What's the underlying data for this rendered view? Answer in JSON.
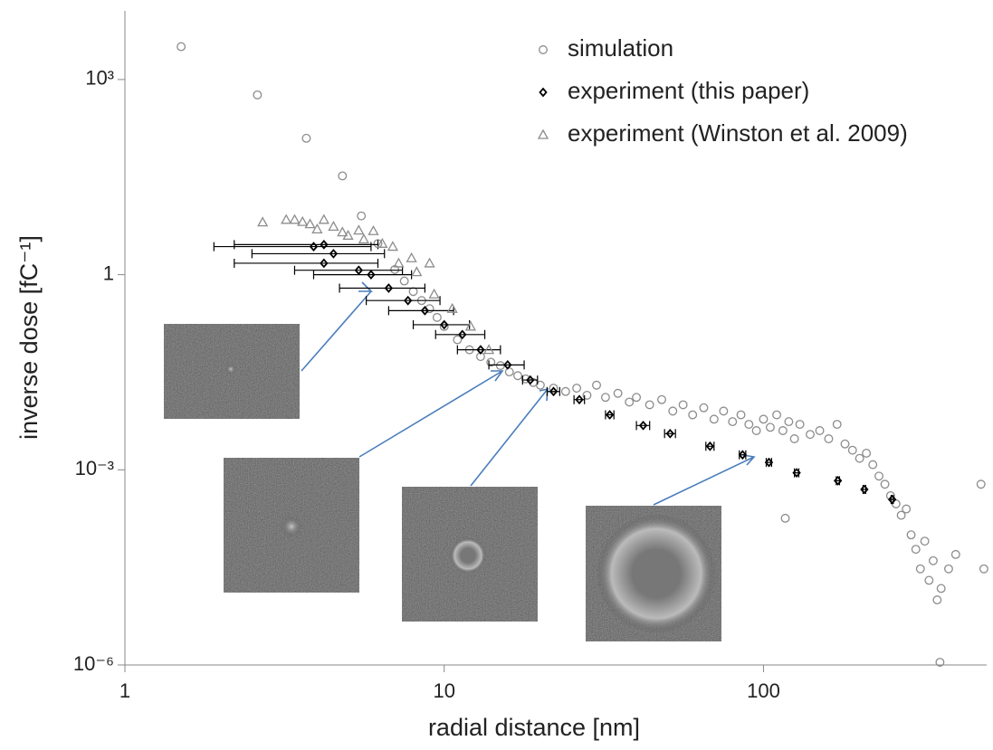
{
  "chart_data": {
    "type": "scatter",
    "xlabel": "radial distance [nm]",
    "ylabel": "inverse dose [fC⁻¹]",
    "xscale": "log",
    "yscale": "log",
    "xlim": [
      1,
      500
    ],
    "ylim": [
      1e-06,
      10000
    ],
    "xticks": [
      1,
      10,
      100
    ],
    "yticks": [
      {
        "value": 1e-06,
        "label": "10⁻⁶"
      },
      {
        "value": 0.001,
        "label": "10⁻³"
      },
      1,
      {
        "value": 1000,
        "label": "10³"
      }
    ],
    "legend": "upper right",
    "series": [
      {
        "name": "simulation",
        "color": "#8c8c8c",
        "marker": "circle",
        "x": [
          1.5,
          2.6,
          3.7,
          4.8,
          5.5,
          6.2,
          7,
          7.5,
          8,
          8.5,
          9,
          9.5,
          10,
          11,
          12,
          13,
          14,
          15,
          16,
          17,
          18,
          19,
          20,
          22,
          24,
          26,
          28,
          30,
          32,
          35,
          38,
          40,
          44,
          48,
          52,
          56,
          60,
          65,
          70,
          75,
          80,
          85,
          90,
          95,
          100,
          105,
          110,
          115,
          117,
          120,
          125,
          130,
          140,
          150,
          160,
          170,
          180,
          190,
          200,
          210,
          220,
          230,
          240,
          250,
          260,
          270,
          280,
          290,
          300,
          310,
          320,
          330,
          340,
          350,
          357,
          360,
          380,
          400,
          480,
          490
        ],
        "values": [
          3200,
          580,
          125,
          33,
          8,
          3,
          1.2,
          0.8,
          0.55,
          0.4,
          0.3,
          0.22,
          0.16,
          0.1,
          0.07,
          0.055,
          0.045,
          0.04,
          0.032,
          0.028,
          0.025,
          0.022,
          0.02,
          0.018,
          0.016,
          0.018,
          0.014,
          0.02,
          0.013,
          0.015,
          0.011,
          0.013,
          0.01,
          0.012,
          0.008,
          0.01,
          0.007,
          0.009,
          0.006,
          0.008,
          0.0055,
          0.007,
          0.005,
          0.004,
          0.006,
          0.0045,
          0.007,
          0.004,
          0.00018,
          0.0055,
          0.003,
          0.005,
          0.0035,
          0.004,
          0.003,
          0.005,
          0.0025,
          0.002,
          0.0015,
          0.0018,
          0.0012,
          0.0008,
          0.0006,
          0.0004,
          0.0003,
          0.0002,
          0.00025,
          0.0001,
          6e-05,
          3e-05,
          8e-05,
          2e-05,
          4e-05,
          1e-05,
          1.1e-06,
          1.5e-05,
          3e-05,
          5e-05,
          0.0006,
          3e-05
        ]
      },
      {
        "name": "experiment (this paper)",
        "color": "#000000",
        "marker": "diamond",
        "x": [
          3.9,
          4.2,
          4.2,
          4.5,
          5.4,
          5.9,
          6.7,
          7.7,
          8.7,
          10,
          11.4,
          13,
          15.8,
          18.6,
          22,
          26.5,
          33,
          42,
          51,
          68,
          86,
          104,
          127,
          171,
          207,
          253
        ],
        "values": [
          2.7,
          2.9,
          1.5,
          2.1,
          1.17,
          1,
          0.62,
          0.4,
          0.28,
          0.17,
          0.12,
          0.07,
          0.041,
          0.024,
          0.016,
          0.012,
          0.007,
          0.0048,
          0.0036,
          0.0023,
          0.0017,
          0.0013,
          0.0009,
          0.00068,
          0.0005,
          0.00035
        ],
        "xerr": [
          2,
          2,
          2,
          2,
          2,
          2,
          2,
          2,
          2,
          2,
          2,
          2,
          2,
          1,
          1,
          1,
          1,
          2,
          2,
          2,
          2,
          2,
          2,
          2,
          2,
          2
        ]
      },
      {
        "name": "experiment (Winston et al. 2009)",
        "color": "#8c8c8c",
        "marker": "triangle",
        "x": [
          2.7,
          3.2,
          3.4,
          3.6,
          3.8,
          4,
          4.2,
          4.5,
          4.8,
          5,
          5.4,
          5.6,
          6,
          6.4,
          6.9,
          7.2,
          7.9,
          8.2,
          9,
          9.3,
          10.6,
          12.1,
          13.8
        ],
        "values": [
          6.4,
          7,
          7,
          6.5,
          6,
          5,
          7,
          5.5,
          4.5,
          4,
          4.8,
          3.5,
          4.7,
          3,
          2.7,
          1.5,
          1.8,
          1.1,
          1.5,
          0.5,
          0.3,
          0.16,
          0.07
        ]
      }
    ]
  }
}
